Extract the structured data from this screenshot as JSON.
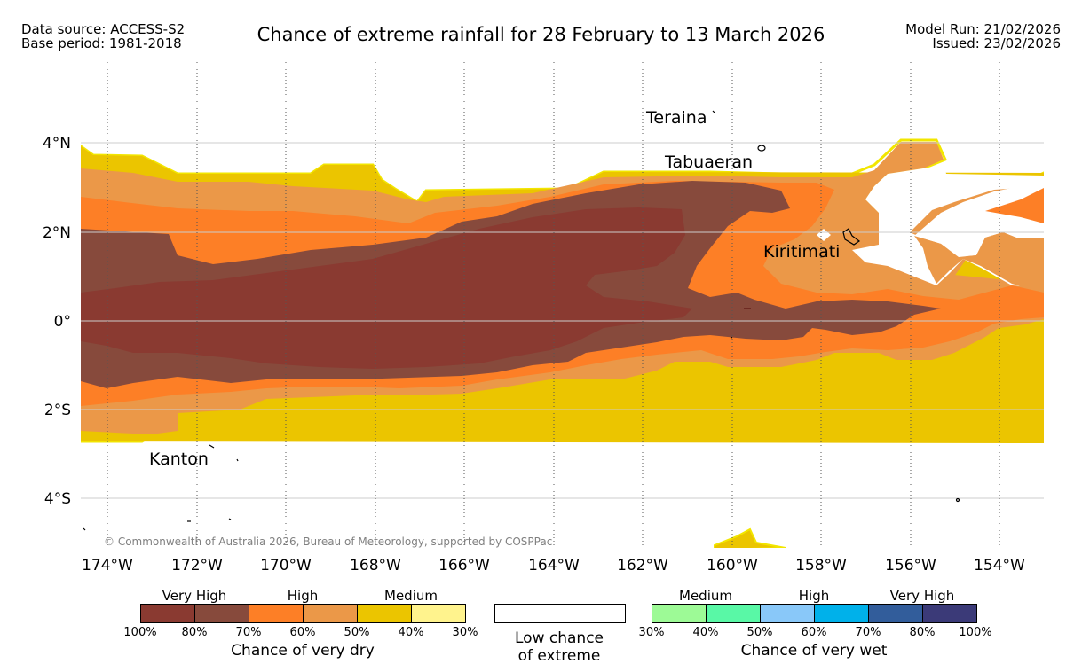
{
  "header": {
    "data_source": "Data source: ACCESS-S2",
    "base_period": "Base period: 1981-2018",
    "title": "Chance of extreme rainfall for 28 February to 13 March 2026",
    "model_run": "Model Run: 21/02/2026",
    "issued": "Issued: 23/02/2026"
  },
  "map": {
    "lon_ticks": [
      "174°W",
      "172°W",
      "170°W",
      "168°W",
      "166°W",
      "164°W",
      "162°W",
      "160°W",
      "158°W",
      "156°W",
      "154°W"
    ],
    "lat_ticks": [
      "4°N",
      "2°N",
      "0°",
      "2°S",
      "4°S"
    ],
    "places": {
      "teraina": "Teraina",
      "tabuaeran": "Tabuaeran",
      "kiritimati": "Kiritimati",
      "kanton": "Kanton"
    },
    "copyright": "© Commonwealth of Australia 2026, Bureau of Meteorology, supported by COSPPac"
  },
  "legend": {
    "dry": {
      "groups": [
        "Very High",
        "High",
        "Medium"
      ],
      "colors": [
        "#8a3a31",
        "#874a3c",
        "#fd7f26",
        "#eb9848",
        "#ebc500",
        "#fff38d"
      ],
      "ticks": [
        "100%",
        "80%",
        "70%",
        "60%",
        "50%",
        "40%",
        "30%"
      ],
      "caption": "Chance of very dry"
    },
    "low": {
      "caption_line1": "Low chance",
      "caption_line2": "of extreme"
    },
    "wet": {
      "groups": [
        "Medium",
        "High",
        "Very High"
      ],
      "colors": [
        "#9dfa96",
        "#59f8a6",
        "#89c8f9",
        "#00b1ea",
        "#325d9b",
        "#3b3a78"
      ],
      "ticks": [
        "30%",
        "40%",
        "50%",
        "60%",
        "70%",
        "80%",
        "100%"
      ],
      "caption": "Chance of very wet"
    }
  }
}
